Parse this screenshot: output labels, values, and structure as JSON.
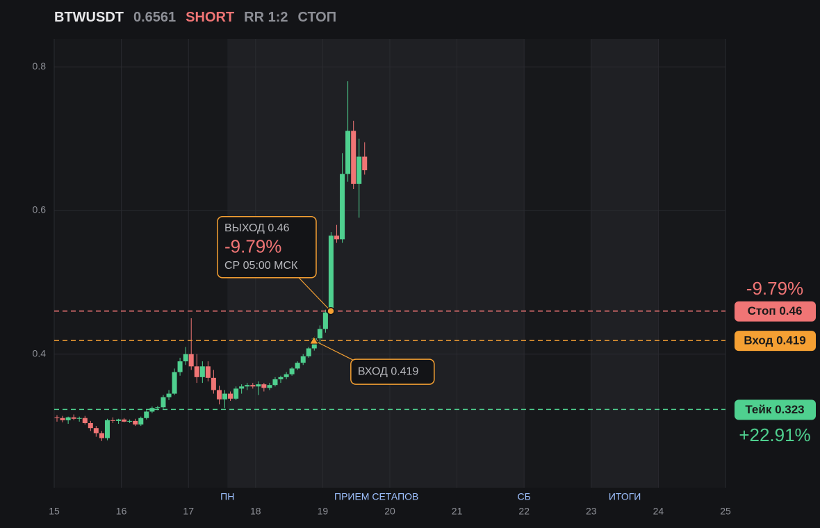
{
  "chart_data": {
    "type": "candlestick",
    "header": {
      "symbol": "BTWUSDT",
      "price": "0.6561",
      "side": "SHORT",
      "rr": "RR 1:2",
      "status": "СТОП"
    },
    "xlim": [
      15,
      25
    ],
    "xticks": [
      15,
      16,
      17,
      18,
      19,
      20,
      21,
      22,
      23,
      24,
      25
    ],
    "ylim": [
      0.214,
      0.839
    ],
    "yticks": [
      0.4,
      0.6,
      0.8
    ],
    "grid": true,
    "up_color": "#4fd08f",
    "down_color": "#f07575",
    "x": [
      15,
      15.083,
      15.167,
      15.25,
      15.333,
      15.417,
      15.5,
      15.583,
      15.667,
      15.75,
      15.833,
      15.917,
      16,
      16.083,
      16.167,
      16.25,
      16.333,
      16.417,
      16.5,
      16.583,
      16.667,
      16.75,
      16.833,
      16.917,
      17,
      17.083,
      17.167,
      17.25,
      17.333,
      17.417,
      17.5,
      17.583,
      17.667,
      17.75,
      17.833,
      17.917,
      18,
      18.083,
      18.167,
      18.25,
      18.333,
      18.417,
      18.5,
      18.583,
      18.667,
      18.75,
      18.833,
      18.917,
      19,
      19.083,
      19.167,
      19.25,
      19.333,
      19.417,
      19.5,
      19.583
    ],
    "open": [
      0.312,
      0.311,
      0.308,
      0.312,
      0.31,
      0.311,
      0.304,
      0.297,
      0.29,
      0.283,
      0.308,
      0.307,
      0.309,
      0.306,
      0.307,
      0.302,
      0.311,
      0.32,
      0.325,
      0.326,
      0.34,
      0.345,
      0.375,
      0.39,
      0.4,
      0.383,
      0.368,
      0.383,
      0.367,
      0.35,
      0.337,
      0.345,
      0.338,
      0.352,
      0.355,
      0.357,
      0.355,
      0.358,
      0.353,
      0.357,
      0.365,
      0.368,
      0.372,
      0.38,
      0.388,
      0.397,
      0.408,
      0.422,
      0.435,
      0.458,
      0.565,
      0.56,
      0.651,
      0.711,
      0.637,
      0.675
    ],
    "high": [
      0.315,
      0.314,
      0.313,
      0.316,
      0.313,
      0.314,
      0.307,
      0.3,
      0.293,
      0.31,
      0.312,
      0.31,
      0.311,
      0.309,
      0.31,
      0.313,
      0.322,
      0.327,
      0.328,
      0.343,
      0.35,
      0.38,
      0.395,
      0.41,
      0.45,
      0.4,
      0.39,
      0.39,
      0.378,
      0.356,
      0.35,
      0.348,
      0.355,
      0.358,
      0.36,
      0.36,
      0.362,
      0.36,
      0.36,
      0.368,
      0.37,
      0.375,
      0.382,
      0.39,
      0.4,
      0.41,
      0.425,
      0.44,
      0.462,
      0.57,
      0.58,
      0.68,
      0.78,
      0.725,
      0.7,
      0.695
    ],
    "low": [
      0.306,
      0.305,
      0.303,
      0.308,
      0.306,
      0.302,
      0.293,
      0.285,
      0.279,
      0.28,
      0.304,
      0.303,
      0.305,
      0.304,
      0.3,
      0.3,
      0.309,
      0.318,
      0.322,
      0.324,
      0.336,
      0.343,
      0.37,
      0.385,
      0.378,
      0.36,
      0.36,
      0.362,
      0.345,
      0.33,
      0.325,
      0.335,
      0.336,
      0.345,
      0.35,
      0.352,
      0.343,
      0.348,
      0.35,
      0.355,
      0.36,
      0.365,
      0.37,
      0.378,
      0.385,
      0.395,
      0.405,
      0.415,
      0.43,
      0.455,
      0.555,
      0.555,
      0.64,
      0.63,
      0.59,
      0.65
    ],
    "close": [
      0.311,
      0.308,
      0.312,
      0.31,
      0.311,
      0.304,
      0.297,
      0.29,
      0.283,
      0.308,
      0.307,
      0.309,
      0.306,
      0.307,
      0.302,
      0.311,
      0.32,
      0.325,
      0.326,
      0.34,
      0.345,
      0.375,
      0.39,
      0.4,
      0.383,
      0.368,
      0.383,
      0.367,
      0.35,
      0.337,
      0.345,
      0.338,
      0.352,
      0.355,
      0.357,
      0.355,
      0.358,
      0.353,
      0.357,
      0.365,
      0.368,
      0.372,
      0.38,
      0.388,
      0.397,
      0.408,
      0.422,
      0.435,
      0.458,
      0.565,
      0.56,
      0.651,
      0.711,
      0.637,
      0.675,
      0.6561
    ],
    "shaded": [
      [
        17.58,
        22
      ],
      [
        23,
        24
      ]
    ],
    "sessions": [
      {
        "label": "ПН",
        "x": 17.58
      },
      {
        "label": "ПРИЕМ СЕТАПОВ",
        "x": 19.8
      },
      {
        "label": "СБ",
        "x": 22
      },
      {
        "label": "ИТОГИ",
        "x": 23.5
      }
    ],
    "levels": [
      {
        "label": "Стоп 0.46",
        "value": 0.46,
        "color": "#f07575"
      },
      {
        "label": "Вход 0.419",
        "value": 0.419,
        "color": "#f5a033"
      },
      {
        "label": "Тейк 0.323",
        "value": 0.323,
        "color": "#4fd08f"
      }
    ],
    "stop_pct": "-9.79%",
    "take_pct": "+22.91%",
    "exit": {
      "title": "ВЫХОД 0.46",
      "pct": "-9.79%",
      "time": "СР 05:00 МСК",
      "x": 19.12,
      "y": 0.46
    },
    "entry": {
      "label": "ВХОД 0.419",
      "x": 18.87,
      "y": 0.419
    }
  }
}
